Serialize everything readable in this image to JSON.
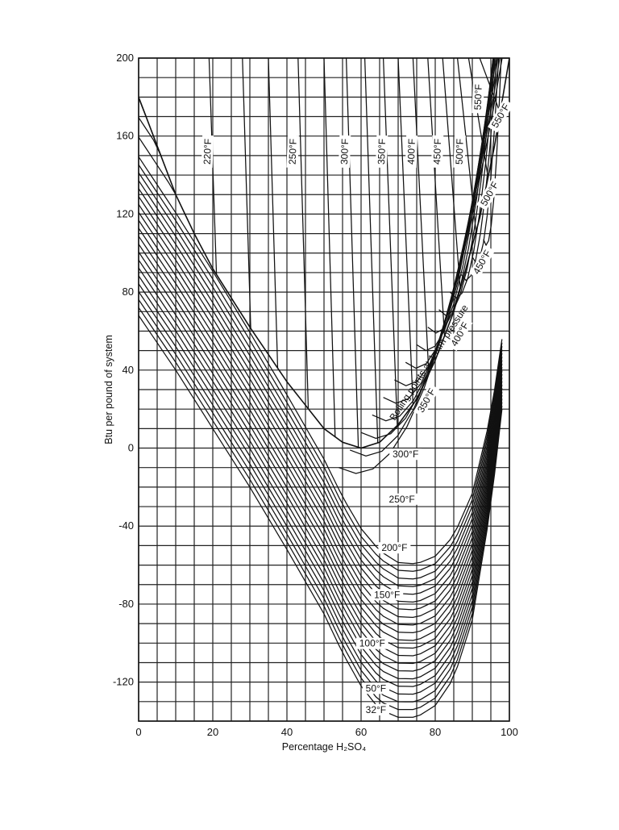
{
  "chart_data": {
    "type": "line",
    "xlabel": "Percentage H₂SO₄",
    "ylabel": "Btu per pound of system",
    "xlim": [
      0,
      100
    ],
    "ylim": [
      -140,
      200
    ],
    "x_ticks": [
      "0",
      "20",
      "40",
      "60",
      "80",
      "100"
    ],
    "y_ticks": [
      "-120",
      "-80",
      "-40",
      "0",
      "40",
      "80",
      "120",
      "160",
      "200"
    ],
    "grid": true,
    "curve_annotation": "Boiling points at 1 atm pressure",
    "boiling_curve": {
      "x": [
        0,
        5,
        10,
        15,
        20,
        30,
        40,
        50,
        55,
        60,
        65,
        70,
        75,
        80,
        85,
        88,
        92,
        96,
        100
      ],
      "y": [
        180,
        155,
        130,
        110,
        92,
        62,
        34,
        10,
        3,
        0,
        3,
        12,
        25,
        45,
        70,
        90,
        118,
        155,
        200
      ]
    },
    "liquid_isotherms": [
      {
        "label": "32°F",
        "t": 32,
        "points": [
          [
            0,
            68
          ],
          [
            10,
            40
          ],
          [
            20,
            10
          ],
          [
            30,
            -20
          ],
          [
            40,
            -52
          ],
          [
            50,
            -85
          ],
          [
            55,
            -105
          ],
          [
            60,
            -122
          ],
          [
            65,
            -134
          ],
          [
            70,
            -138
          ],
          [
            75,
            -138
          ],
          [
            80,
            -132
          ],
          [
            85,
            -118
          ],
          [
            90,
            -88
          ],
          [
            95,
            -30
          ],
          [
            98,
            20
          ]
        ]
      },
      {
        "label": "50°F",
        "t": 50,
        "points": [
          [
            0,
            86
          ],
          [
            10,
            58
          ],
          [
            20,
            28
          ],
          [
            30,
            -2
          ],
          [
            40,
            -34
          ],
          [
            50,
            -67
          ],
          [
            55,
            -87
          ],
          [
            60,
            -104
          ],
          [
            65,
            -117
          ],
          [
            70,
            -123
          ],
          [
            75,
            -124
          ],
          [
            80,
            -119
          ],
          [
            85,
            -106
          ],
          [
            90,
            -77
          ],
          [
            95,
            -20
          ],
          [
            98,
            30
          ]
        ]
      },
      {
        "label": "100°F",
        "t": 100,
        "points": [
          [
            0,
            136
          ],
          [
            10,
            108
          ],
          [
            20,
            78
          ],
          [
            30,
            47
          ],
          [
            40,
            15
          ],
          [
            50,
            -18
          ],
          [
            55,
            -38
          ],
          [
            60,
            -55
          ],
          [
            65,
            -67
          ],
          [
            70,
            -73
          ],
          [
            75,
            -74
          ],
          [
            80,
            -70
          ],
          [
            85,
            -58
          ],
          [
            90,
            -35
          ],
          [
            95,
            10
          ],
          [
            98,
            52
          ]
        ]
      },
      {
        "label": "150°F",
        "t": 150,
        "points": [
          [
            0,
            186
          ],
          [
            10,
            157
          ],
          [
            20,
            127
          ],
          [
            30,
            95
          ],
          [
            40,
            63
          ],
          [
            50,
            30
          ],
          [
            55,
            11
          ],
          [
            60,
            -5
          ],
          [
            65,
            -16
          ],
          [
            70,
            -23
          ],
          [
            75,
            -24
          ],
          [
            80,
            -21
          ],
          [
            85,
            -12
          ],
          [
            90,
            6
          ],
          [
            95,
            38
          ],
          [
            98,
            72
          ]
        ]
      },
      {
        "label": "200°F",
        "t": 200,
        "points": [
          [
            56,
            7
          ],
          [
            60,
            4
          ],
          [
            65,
            -2
          ],
          [
            70,
            -1
          ],
          [
            75,
            0
          ],
          [
            80,
            0
          ],
          [
            85,
            2
          ],
          [
            90,
            14
          ],
          [
            95,
            40
          ],
          [
            98,
            75
          ]
        ]
      },
      {
        "label": "250°F",
        "t": 250,
        "points": [
          [
            60,
            0
          ],
          [
            65,
            -28
          ],
          [
            70,
            -25
          ],
          [
            75,
            -26
          ],
          [
            80,
            -22
          ],
          [
            85,
            -12
          ],
          [
            90,
            6
          ],
          [
            95,
            40
          ]
        ]
      },
      {
        "label": "300°F",
        "t": 300,
        "points": [
          [
            64,
            0
          ],
          [
            70,
            -5
          ],
          [
            75,
            -6
          ],
          [
            80,
            -2
          ],
          [
            85,
            8
          ],
          [
            90,
            26
          ],
          [
            95,
            58
          ]
        ]
      },
      {
        "label": "350°F",
        "t": 350,
        "points": []
      },
      {
        "label": "400°F",
        "t": 400,
        "points": []
      },
      {
        "label": "450°F",
        "t": 450,
        "points": []
      },
      {
        "label": "500°F",
        "t": 500,
        "points": []
      },
      {
        "label": "550°F",
        "t": 550,
        "points": []
      }
    ],
    "vapor_isotherms": [
      {
        "label": "220°F",
        "points": [
          [
            19,
            200
          ],
          [
            19,
            94
          ]
        ]
      },
      {
        "label": "250°F",
        "points": [
          [
            43,
            200
          ],
          [
            45,
            35
          ]
        ]
      },
      {
        "label": "300°F",
        "points": [
          [
            56,
            200
          ],
          [
            59,
            2
          ]
        ]
      },
      {
        "label": "350°F",
        "points": [
          [
            66,
            200
          ],
          [
            70,
            14
          ]
        ]
      },
      {
        "label": "400°F",
        "points": [
          [
            74,
            200
          ],
          [
            79,
            43
          ]
        ]
      },
      {
        "label": "450°F",
        "points": [
          [
            82,
            200
          ],
          [
            86,
            78
          ]
        ]
      },
      {
        "label": "500°F",
        "points": [
          [
            86,
            200
          ],
          [
            91,
            118
          ]
        ]
      },
      {
        "label": "550°F",
        "points": [
          [
            92,
            200
          ],
          [
            95,
            148
          ]
        ]
      }
    ],
    "inside_labels": [
      {
        "text": "32°F",
        "x": 64,
        "y": -135
      },
      {
        "text": "50°F",
        "x": 64,
        "y": -124
      },
      {
        "text": "100°F",
        "x": 63,
        "y": -101
      },
      {
        "text": "150°F",
        "x": 67,
        "y": -76
      },
      {
        "text": "200°F",
        "x": 69,
        "y": -52
      },
      {
        "text": "250°F",
        "x": 71,
        "y": -27
      },
      {
        "text": "300°F",
        "x": 72,
        "y": -4
      },
      {
        "text": "350°F",
        "x": 78,
        "y": 24
      },
      {
        "text": "400°F",
        "x": 87,
        "y": 58
      },
      {
        "text": "450°F",
        "x": 93,
        "y": 95
      },
      {
        "text": "500°F",
        "x": 95,
        "y": 130
      },
      {
        "text": "550°F",
        "x": 98,
        "y": 170
      }
    ],
    "vapor_labels": [
      {
        "text": "220°F",
        "x": 19,
        "y": 152
      },
      {
        "text": "250°F",
        "x": 42,
        "y": 152
      },
      {
        "text": "300°F",
        "x": 56,
        "y": 152
      },
      {
        "text": "350°F",
        "x": 66,
        "y": 152
      },
      {
        "text": "400°F",
        "x": 74,
        "y": 152
      },
      {
        "text": "450°F",
        "x": 81,
        "y": 152
      },
      {
        "text": "500°F",
        "x": 87,
        "y": 152
      },
      {
        "text": "550°F",
        "x": 92,
        "y": 180
      }
    ]
  }
}
